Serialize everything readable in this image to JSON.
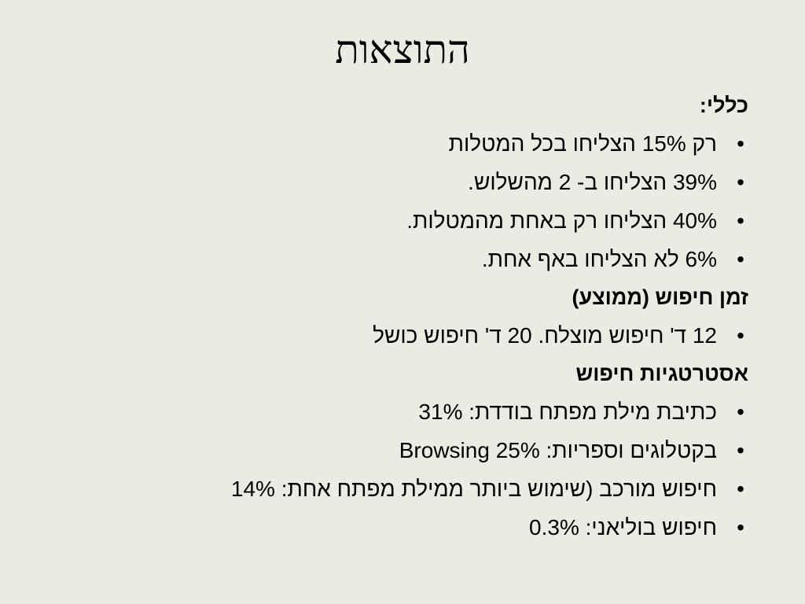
{
  "slide": {
    "title": "התוצאות",
    "bullet_glyph": "•",
    "sections": [
      {
        "heading": "כללי:",
        "items": [
          "רק 15% הצליחו בכל המטלות",
          "39% הצליחו ב- 2 מהשלוש.",
          "40% הצליחו רק באחת מהמטלות.",
          "6% לא הצליחו באף אחת."
        ]
      },
      {
        "heading": "זמן חיפוש (ממוצע)",
        "items": [
          "12 ד' חיפוש מוצלח. 20 ד' חיפוש כושל"
        ]
      },
      {
        "heading": "אסטרטגיות חיפוש",
        "items": [
          "כתיבת מילת מפתח בודדת: 31%",
          "Browsing בקטלוגים וספריות: 25%",
          "חיפוש מורכב (שימוש ביותר ממילת מפתח אחת: 14%",
          "חיפוש בוליאני: 0.3%"
        ]
      }
    ]
  }
}
